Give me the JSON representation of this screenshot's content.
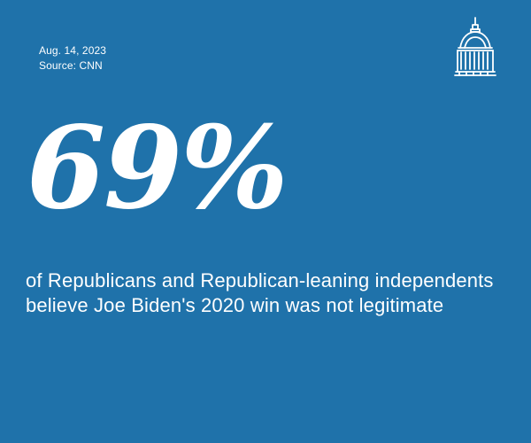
{
  "card": {
    "date": "Aug. 14, 2023",
    "source": "Source: CNN",
    "big_number": "69%",
    "statement": "of Republicans and Republican-leaning independents believe Joe Biden's 2020 win was not legitimate"
  },
  "colors": {
    "background": "#1f72aa",
    "text": "#ffffff"
  },
  "logo": {
    "icon": "capitol-dome-icon"
  }
}
